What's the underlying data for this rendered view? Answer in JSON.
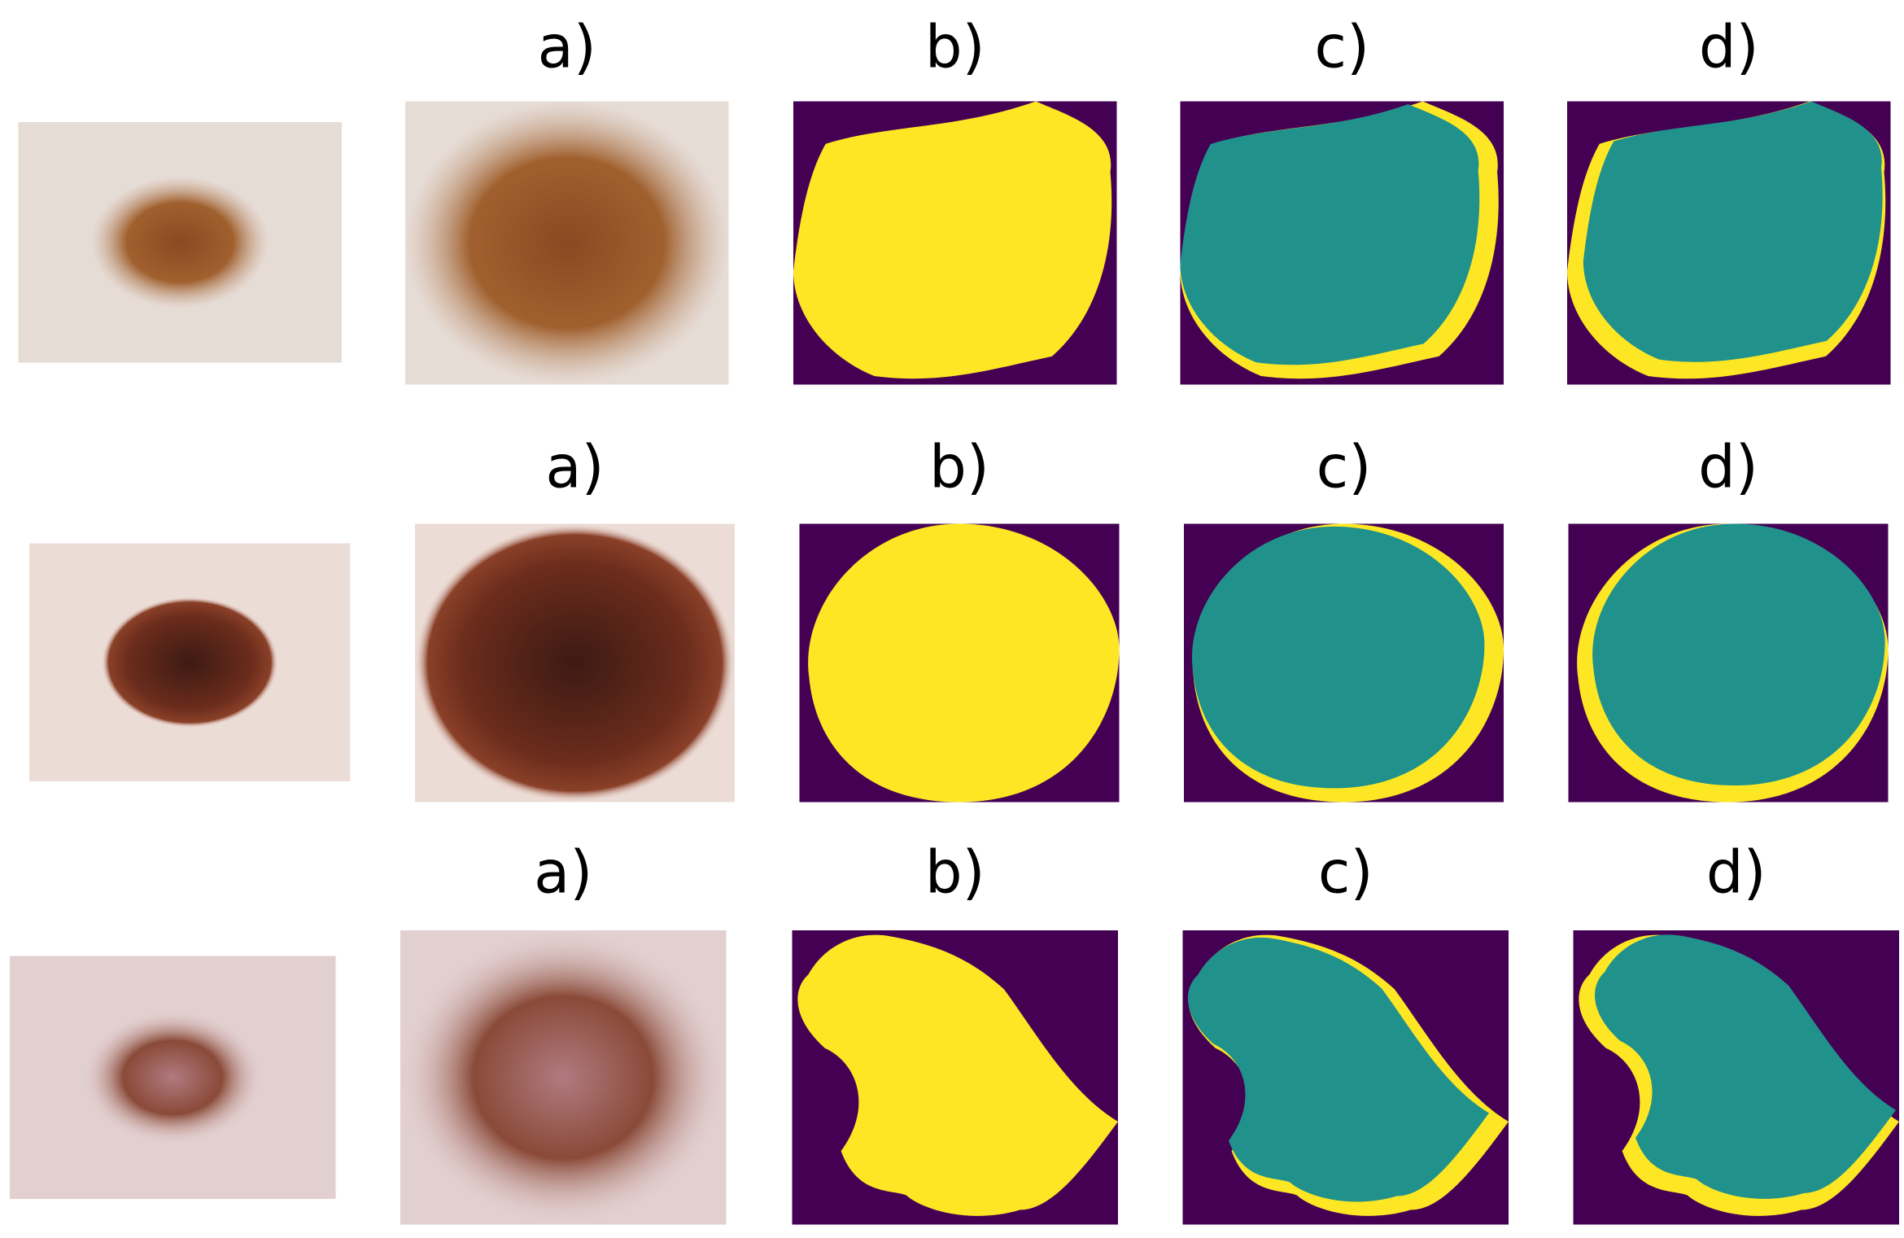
{
  "rows": [
    {
      "labels": [
        "a)",
        "b)",
        "c)",
        "d)"
      ]
    },
    {
      "labels": [
        "a)",
        "b)",
        "c)",
        "d)"
      ]
    },
    {
      "labels": [
        "a)",
        "b)",
        "c)",
        "d)"
      ]
    }
  ]
}
